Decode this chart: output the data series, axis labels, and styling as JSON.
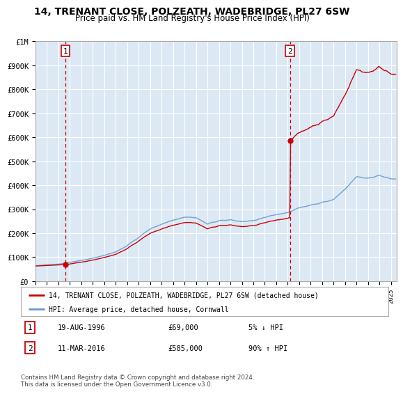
{
  "title": "14, TRENANT CLOSE, POLZEATH, WADEBRIDGE, PL27 6SW",
  "subtitle": "Price paid vs. HM Land Registry's House Price Index (HPI)",
  "sale1_date": "19-AUG-1996",
  "sale1_price": 69000,
  "sale2_date": "11-MAR-2016",
  "sale2_price": 585000,
  "sale1_hpi_pct": "5% ↓ HPI",
  "sale2_hpi_pct": "90% ↑ HPI",
  "legend_line1": "14, TRENANT CLOSE, POLZEATH, WADEBRIDGE, PL27 6SW (detached house)",
  "legend_line2": "HPI: Average price, detached house, Cornwall",
  "footer": "Contains HM Land Registry data © Crown copyright and database right 2024.\nThis data is licensed under the Open Government Licence v3.0.",
  "line_color_price": "#cc0000",
  "line_color_hpi": "#6699cc",
  "background_color": "#ffffff",
  "plot_bg_color": "#dce9f5",
  "grid_color": "#ffffff",
  "ylim": [
    0,
    1000000
  ],
  "xlim_start": 1994.0,
  "xlim_end": 2025.5,
  "sale1_x": 1996.63,
  "sale2_x": 2016.19,
  "title_fontsize": 10,
  "subtitle_fontsize": 8.5
}
